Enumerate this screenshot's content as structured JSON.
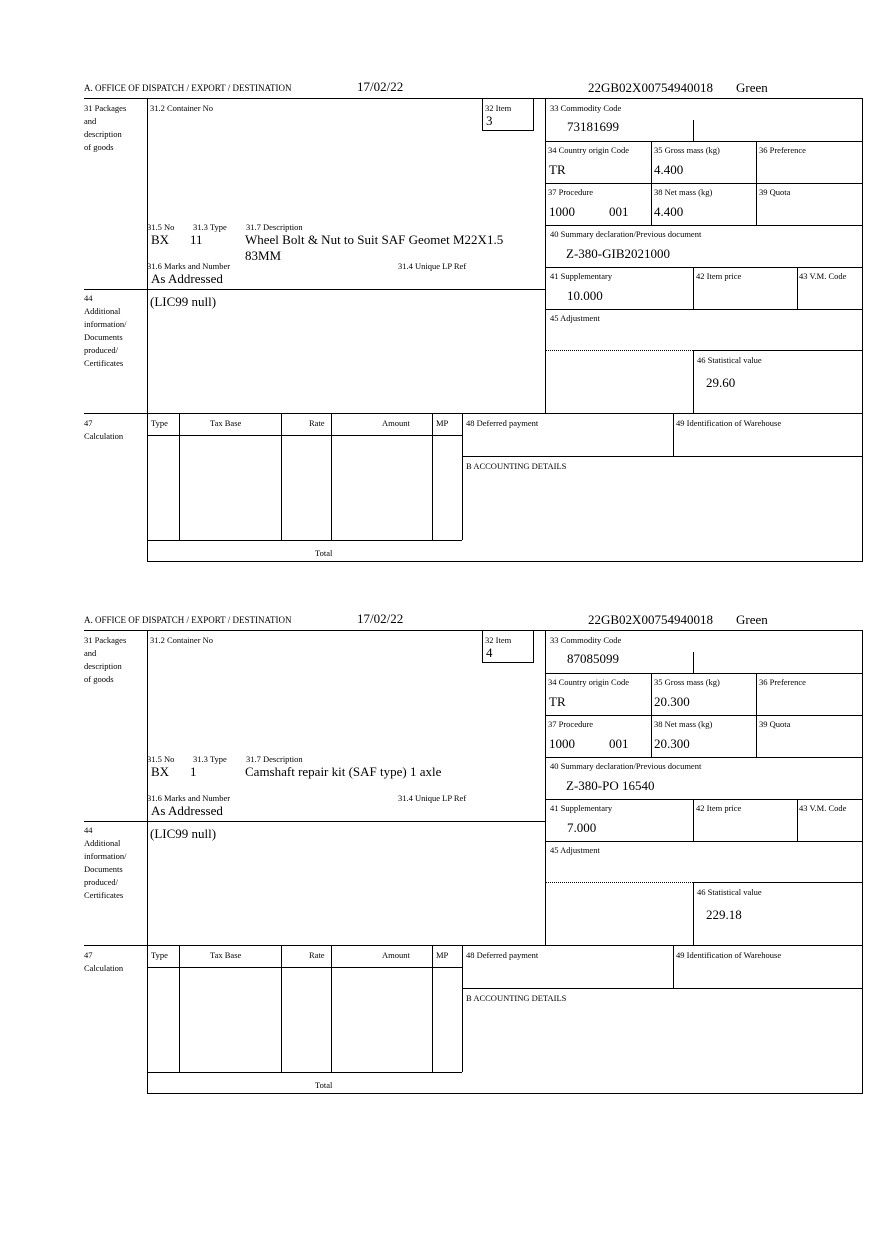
{
  "labels": {
    "office": "A.  OFFICE OF DISPATCH / EXPORT / DESTINATION",
    "f31": [
      "31 Packages",
      "and",
      "description",
      "of goods"
    ],
    "f31_2": "31.2 Container No",
    "f32": "32 Item",
    "f31_5": "31.5 No",
    "f31_3": "31.3 Type",
    "f31_7": "31.7 Description",
    "f31_6": "31.6 Marks and Number",
    "f31_4": "31.4 Unique LP Ref",
    "f44": [
      "44",
      "Additional",
      "information/",
      "Documents",
      "produced/",
      "Certificates"
    ],
    "f33": "33 Commodity Code",
    "f34": "34 Country origin Code",
    "f35": "35 Gross mass (kg)",
    "f36": "36 Preference",
    "f37": "37 Procedure",
    "f38": "38 Net mass (kg)",
    "f39": "39 Quota",
    "f40": "40 Summary declaration/Previous document",
    "f41": "41 Supplementary",
    "f42": "42 Item price",
    "f43": "43 V.M. Code",
    "f45": "45 Adjustment",
    "f46": "46 Statistical value",
    "f47": [
      "47",
      "Calculation"
    ],
    "calc_cols": [
      "Type",
      "Tax Base",
      "Rate",
      "Amount",
      "MP"
    ],
    "total": "Total",
    "f48": "48 Deferred payment",
    "f49": "49 Identification of Warehouse",
    "accounting": "B ACCOUNTING DETAILS"
  },
  "forms": [
    {
      "date": "17/02/22",
      "reference": "22GB02X00754940018",
      "route": "Green",
      "item": "3",
      "package_no": "BX",
      "package_type": "11",
      "description": [
        "Wheel Bolt & Nut to Suit SAF Geomet M22X1.5",
        "83MM"
      ],
      "marks": "As Addressed",
      "additional_info": "(LIC99 null)",
      "commodity_code": "73181699",
      "country_origin": "TR",
      "gross_mass": "4.400",
      "procedure": "1000",
      "procedure_add": "001",
      "net_mass": "4.400",
      "previous_document": "Z-380-GIB2021000",
      "supplementary": "10.000",
      "statistical_value": "29.60"
    },
    {
      "date": "17/02/22",
      "reference": "22GB02X00754940018",
      "route": "Green",
      "item": "4",
      "package_no": "BX",
      "package_type": "1",
      "description": [
        "Camshaft repair kit (SAF type) 1 axle",
        ""
      ],
      "marks": "As Addressed",
      "additional_info": "(LIC99 null)",
      "commodity_code": "87085099",
      "country_origin": "TR",
      "gross_mass": "20.300",
      "procedure": "1000",
      "procedure_add": "001",
      "net_mass": "20.300",
      "previous_document": "Z-380-PO 16540",
      "supplementary": "7.000",
      "statistical_value": "229.18"
    }
  ]
}
